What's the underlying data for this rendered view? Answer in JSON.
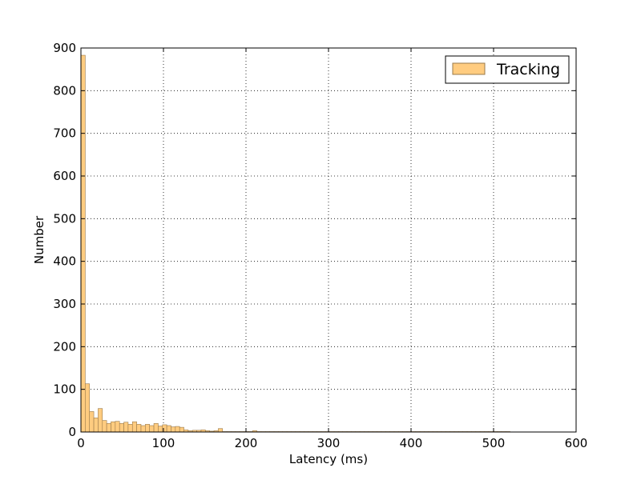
{
  "chart_data": {
    "type": "bar",
    "subtype": "histogram",
    "title": "",
    "xlabel": "Latency (ms)",
    "ylabel": "Number",
    "xlim": [
      0,
      600
    ],
    "ylim": [
      0,
      900
    ],
    "xticks": [
      0,
      100,
      200,
      300,
      400,
      500,
      600
    ],
    "yticks": [
      0,
      100,
      200,
      300,
      400,
      500,
      600,
      700,
      800,
      900
    ],
    "grid": true,
    "grid_style": "dotted",
    "legend_position": "top-right",
    "bin_width": 5.2,
    "series": [
      {
        "name": "Tracking",
        "color": "#ffcc80",
        "edge_color": "#9a7a4a",
        "values": [
          883,
          113,
          48,
          33,
          55,
          27,
          20,
          24,
          25,
          20,
          23,
          18,
          24,
          18,
          15,
          18,
          15,
          20,
          14,
          17,
          15,
          12,
          13,
          11,
          5,
          3,
          4,
          4,
          5,
          3,
          2,
          3,
          8,
          1,
          1,
          1,
          1,
          1,
          1,
          1,
          3,
          1,
          1,
          1,
          1,
          1,
          1,
          1,
          1,
          1,
          1,
          1,
          1,
          1,
          1,
          1,
          1,
          1,
          1,
          1,
          1,
          1,
          1,
          1,
          1,
          1,
          1,
          1,
          1,
          1,
          1,
          1,
          1,
          1,
          1,
          1,
          1,
          1,
          1,
          1,
          1,
          1,
          1,
          1,
          1,
          1,
          1,
          1,
          1,
          1,
          1,
          1,
          1,
          1,
          1,
          1,
          1,
          1,
          1,
          1
        ]
      }
    ]
  }
}
